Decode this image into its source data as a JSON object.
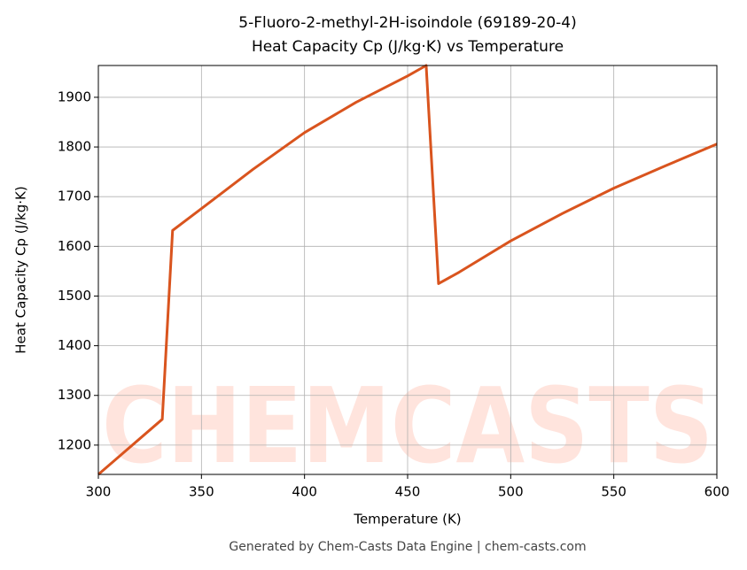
{
  "chart_data": {
    "type": "line",
    "title": "5-Fluoro-2-methyl-2H-isoindole (69189-20-4)",
    "subtitle": "Heat Capacity Cp (J/kg·K) vs Temperature",
    "x_label": "Temperature (K)",
    "y_label": "Heat Capacity Cp (J/kg·K)",
    "watermark": "CHEMCASTS",
    "footer": "Generated by Chem-Casts Data Engine | chem-casts.com",
    "x": [
      300,
      331,
      336,
      350,
      375,
      400,
      425,
      450,
      459,
      465,
      475,
      500,
      525,
      550,
      575,
      600
    ],
    "series": [
      {
        "name": "Cp",
        "color": "#d9541e",
        "values": [
          1141,
          1252,
          1632,
          1676,
          1755,
          1829,
          1890,
          1943,
          1964,
          1525,
          1548,
          1611,
          1666,
          1717,
          1762,
          1806
        ]
      }
    ],
    "xlim": [
      300,
      600
    ],
    "xticks": [
      300,
      350,
      400,
      450,
      500,
      550,
      600
    ],
    "ylim": [
      1141,
      1964
    ],
    "yticks": [
      1200,
      1300,
      1400,
      1500,
      1600,
      1700,
      1800,
      1900
    ],
    "grid": true
  }
}
